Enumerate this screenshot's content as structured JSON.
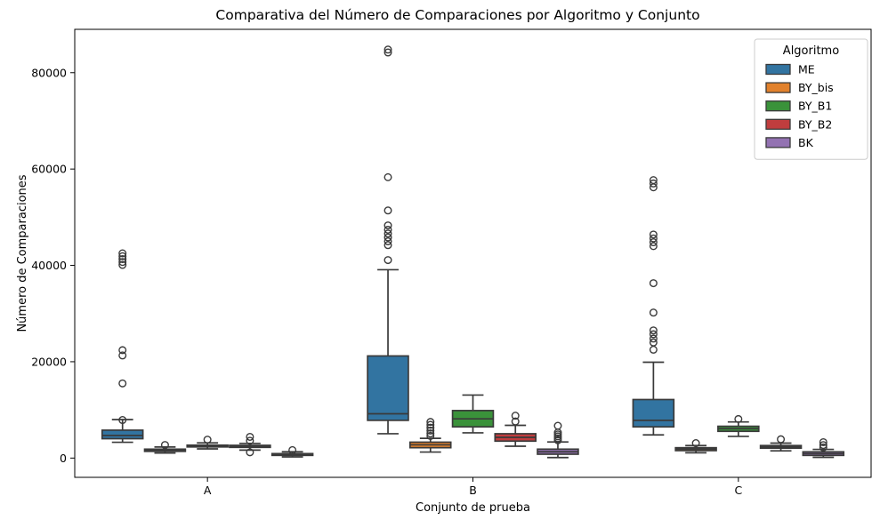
{
  "figure": {
    "background": "#ffffff",
    "title": "Comparativa del Número de Comparaciones por Algoritmo y Conjunto"
  },
  "chart_data": {
    "type": "boxplot",
    "title": "Comparativa del Número de Comparaciones por Algoritmo y Conjunto",
    "xlabel": "Conjunto de prueba",
    "ylabel": "Número de Comparaciones",
    "categories": [
      "A",
      "B",
      "C"
    ],
    "y_ticks": [
      0,
      20000,
      40000,
      60000,
      80000
    ],
    "ylim": [
      -4000,
      89000
    ],
    "grid": false,
    "legend": {
      "title": "Algoritmo",
      "position": "upper-right"
    },
    "edge_color": "#3A3A3A",
    "series": [
      {
        "name": "ME",
        "color": "#3274A1",
        "boxes": [
          {
            "whislo": 3280,
            "q1": 4020,
            "med": 4700,
            "q3": 5790,
            "whishi": 8000,
            "outliers": [
              7900,
              15500,
              21300,
              22400,
              40100,
              40700,
              41300,
              41900,
              42500
            ]
          },
          {
            "whislo": 5050,
            "q1": 7830,
            "med": 9200,
            "q3": 21200,
            "whishi": 39100,
            "outliers": [
              41100,
              44200,
              45000,
              45800,
              46600,
              47400,
              48300,
              51400,
              58300,
              84200,
              84800
            ]
          },
          {
            "whislo": 4810,
            "q1": 6480,
            "med": 7830,
            "q3": 12150,
            "whishi": 19900,
            "outliers": [
              22500,
              24000,
              24800,
              25700,
              26500,
              30200,
              36300,
              44000,
              44800,
              45600,
              46400,
              56200,
              57000,
              57700
            ]
          }
        ]
      },
      {
        "name": "BY_bis",
        "color": "#E1812C",
        "boxes": [
          {
            "whislo": 1050,
            "q1": 1390,
            "med": 1620,
            "q3": 1850,
            "whishi": 2300,
            "outliers": [
              2720
            ]
          },
          {
            "whislo": 1250,
            "q1": 2150,
            "med": 2750,
            "q3": 3300,
            "whishi": 4100,
            "outliers": [
              4600,
              5100,
              5700,
              6300,
              6900,
              7500
            ]
          },
          {
            "whislo": 1100,
            "q1": 1550,
            "med": 1850,
            "q3": 2150,
            "whishi": 2600,
            "outliers": [
              3100
            ]
          }
        ]
      },
      {
        "name": "BY_B1",
        "color": "#3A923A",
        "boxes": [
          {
            "whislo": 1900,
            "q1": 2310,
            "med": 2500,
            "q3": 2680,
            "whishi": 3150,
            "outliers": [
              3830
            ]
          },
          {
            "whislo": 5240,
            "q1": 6480,
            "med": 8140,
            "q3": 9860,
            "whishi": 13080,
            "outliers": []
          },
          {
            "whislo": 4500,
            "q1": 5550,
            "med": 6100,
            "q3": 6600,
            "whishi": 7500,
            "outliers": [
              8100
            ]
          }
        ]
      },
      {
        "name": "BY_B2",
        "color": "#C03D3E",
        "boxes": [
          {
            "whislo": 1650,
            "q1": 2220,
            "med": 2420,
            "q3": 2645,
            "whishi": 3050,
            "outliers": [
              1200,
              3600,
              4400
            ]
          },
          {
            "whislo": 2460,
            "q1": 3515,
            "med": 4300,
            "q3": 5050,
            "whishi": 6800,
            "outliers": [
              7600,
              8800
            ]
          },
          {
            "whislo": 1500,
            "q1": 2050,
            "med": 2300,
            "q3": 2600,
            "whishi": 3100,
            "outliers": [
              3900
            ]
          }
        ]
      },
      {
        "name": "BK",
        "color": "#9372B2",
        "boxes": [
          {
            "whislo": 250,
            "q1": 555,
            "med": 740,
            "q3": 925,
            "whishi": 1300,
            "outliers": [
              1650
            ]
          },
          {
            "whislo": 100,
            "q1": 800,
            "med": 1300,
            "q3": 1850,
            "whishi": 3350,
            "outliers": [
              3700,
              4100,
              4500,
              4900,
              5300,
              6700
            ]
          },
          {
            "whislo": 150,
            "q1": 555,
            "med": 925,
            "q3": 1295,
            "whishi": 1800,
            "outliers": [
              2200,
              2700,
              3300
            ]
          }
        ]
      }
    ]
  }
}
